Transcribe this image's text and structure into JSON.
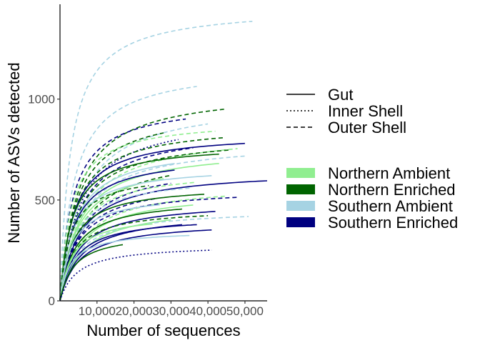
{
  "chart_data": {
    "type": "line",
    "title": "",
    "xlabel": "Number of sequences",
    "ylabel": "Number of ASVs detected",
    "xlim": [
      0,
      56000
    ],
    "ylim": [
      0,
      1470
    ],
    "x_ticks": [
      10000,
      20000,
      30000,
      40000,
      50000
    ],
    "x_tick_labels": [
      "10,000",
      "20,000",
      "30,000",
      "40,000",
      "50,000"
    ],
    "y_ticks": [
      0,
      500,
      1000
    ],
    "y_tick_labels": [
      "0",
      "500",
      "1000"
    ],
    "grid": false,
    "legend_position": "right",
    "linetype_legend": [
      {
        "label": "Gut",
        "dash": "solid"
      },
      {
        "label": "Inner Shell",
        "dash": "dotted"
      },
      {
        "label": "Outer Shell",
        "dash": "dashed"
      }
    ],
    "color_legend": [
      {
        "label": "Northern Ambient",
        "color": "#90ee90"
      },
      {
        "label": "Northern Enriched",
        "color": "#006400"
      },
      {
        "label": "Southern Ambient",
        "color": "#a6d3e3"
      },
      {
        "label": "Southern Enriched",
        "color": "#000080"
      }
    ],
    "series": [
      {
        "group": "Southern Ambient",
        "type": "Outer Shell",
        "max_seq": 52000,
        "asymptote": 1460
      },
      {
        "group": "Southern Ambient",
        "type": "Outer Shell",
        "max_seq": 37000,
        "asymptote": 1170
      },
      {
        "group": "Northern Enriched",
        "type": "Outer Shell",
        "max_seq": 45000,
        "asymptote": 1050
      },
      {
        "group": "Southern Ambient",
        "type": "Outer Shell",
        "max_seq": 40000,
        "asymptote": 1000
      },
      {
        "group": "Southern Enriched",
        "type": "Outer Shell",
        "max_seq": 34000,
        "asymptote": 990
      },
      {
        "group": "Northern Enriched",
        "type": "Outer Shell",
        "max_seq": 28000,
        "asymptote": 960
      },
      {
        "group": "Southern Enriched",
        "type": "Inner Shell",
        "max_seq": 32000,
        "asymptote": 930
      },
      {
        "group": "Northern Ambient",
        "type": "Outer Shell",
        "max_seq": 42000,
        "asymptote": 900
      },
      {
        "group": "Northern Enriched",
        "type": "Outer Shell",
        "max_seq": 44000,
        "asymptote": 880
      },
      {
        "group": "Southern Enriched",
        "type": "Outer Shell",
        "max_seq": 36000,
        "asymptote": 860
      },
      {
        "group": "Northern Ambient",
        "type": "Outer Shell",
        "max_seq": 48000,
        "asymptote": 845
      },
      {
        "group": "Southern Enriched",
        "type": "Gut",
        "max_seq": 50000,
        "asymptote": 835
      },
      {
        "group": "Northern Enriched",
        "type": "Outer Shell",
        "max_seq": 46000,
        "asymptote": 820
      },
      {
        "group": "Southern Ambient",
        "type": "Outer Shell",
        "max_seq": 50000,
        "asymptote": 795
      },
      {
        "group": "Northern Enriched",
        "type": "Gut",
        "max_seq": 43000,
        "asymptote": 780
      },
      {
        "group": "Southern Ambient",
        "type": "Gut",
        "max_seq": 31000,
        "asymptote": 770
      },
      {
        "group": "Northern Ambient",
        "type": "Gut",
        "max_seq": 43000,
        "asymptote": 760
      },
      {
        "group": "Northern Enriched",
        "type": "Outer Shell",
        "max_seq": 30000,
        "asymptote": 745
      },
      {
        "group": "Southern Enriched",
        "type": "Gut",
        "max_seq": 31000,
        "asymptote": 725
      },
      {
        "group": "Northern Ambient",
        "type": "Gut",
        "max_seq": 28000,
        "asymptote": 705
      },
      {
        "group": "Southern Enriched",
        "type": "Outer Shell",
        "max_seq": 30000,
        "asymptote": 690
      },
      {
        "group": "Southern Ambient",
        "type": "Gut",
        "max_seq": 41000,
        "asymptote": 670
      },
      {
        "group": "Northern Ambient",
        "type": "Outer Shell",
        "max_seq": 37000,
        "asymptote": 655
      },
      {
        "group": "Southern Enriched",
        "type": "Gut",
        "max_seq": 56000,
        "asymptote": 650
      },
      {
        "group": "Northern Enriched",
        "type": "Outer Shell",
        "max_seq": 24000,
        "asymptote": 640
      },
      {
        "group": "Southern Ambient",
        "type": "Outer Shell",
        "max_seq": 35000,
        "asymptote": 620
      },
      {
        "group": "Southern Enriched",
        "type": "Outer Shell",
        "max_seq": 26000,
        "asymptote": 600
      },
      {
        "group": "Northern Ambient",
        "type": "Outer Shell",
        "max_seq": 45000,
        "asymptote": 585
      },
      {
        "group": "Northern Enriched",
        "type": "Gut",
        "max_seq": 39000,
        "asymptote": 575
      },
      {
        "group": "Southern Enriched",
        "type": "Outer Shell",
        "max_seq": 48000,
        "asymptote": 560
      },
      {
        "group": "Northern Ambient",
        "type": "Gut",
        "max_seq": 36000,
        "asymptote": 545
      },
      {
        "group": "Southern Ambient",
        "type": "Gut",
        "max_seq": 27000,
        "asymptote": 530
      },
      {
        "group": "Northern Enriched",
        "type": "Gut",
        "max_seq": 33000,
        "asymptote": 510
      },
      {
        "group": "Southern Enriched",
        "type": "Gut",
        "max_seq": 42000,
        "asymptote": 495
      },
      {
        "group": "Northern Ambient",
        "type": "Gut",
        "max_seq": 30000,
        "asymptote": 480
      },
      {
        "group": "Northern Enriched",
        "type": "Outer Shell",
        "max_seq": 40000,
        "asymptote": 460
      },
      {
        "group": "Southern Ambient",
        "type": "Outer Shell",
        "max_seq": 51000,
        "asymptote": 455
      },
      {
        "group": "Southern Enriched",
        "type": "Gut",
        "max_seq": 33000,
        "asymptote": 440
      },
      {
        "group": "Northern Ambient",
        "type": "Gut",
        "max_seq": 25000,
        "asymptote": 430
      },
      {
        "group": "Southern Enriched",
        "type": "Gut",
        "max_seq": 37000,
        "asymptote": 420
      },
      {
        "group": "Southern Enriched",
        "type": "Gut",
        "max_seq": 41000,
        "asymptote": 395
      },
      {
        "group": "Southern Ambient",
        "type": "Gut",
        "max_seq": 35000,
        "asymptote": 350
      },
      {
        "group": "Northern Enriched",
        "type": "Gut",
        "max_seq": 17000,
        "asymptote": 340
      },
      {
        "group": "Southern Enriched",
        "type": "Inner Shell",
        "max_seq": 41000,
        "asymptote": 280
      }
    ]
  }
}
